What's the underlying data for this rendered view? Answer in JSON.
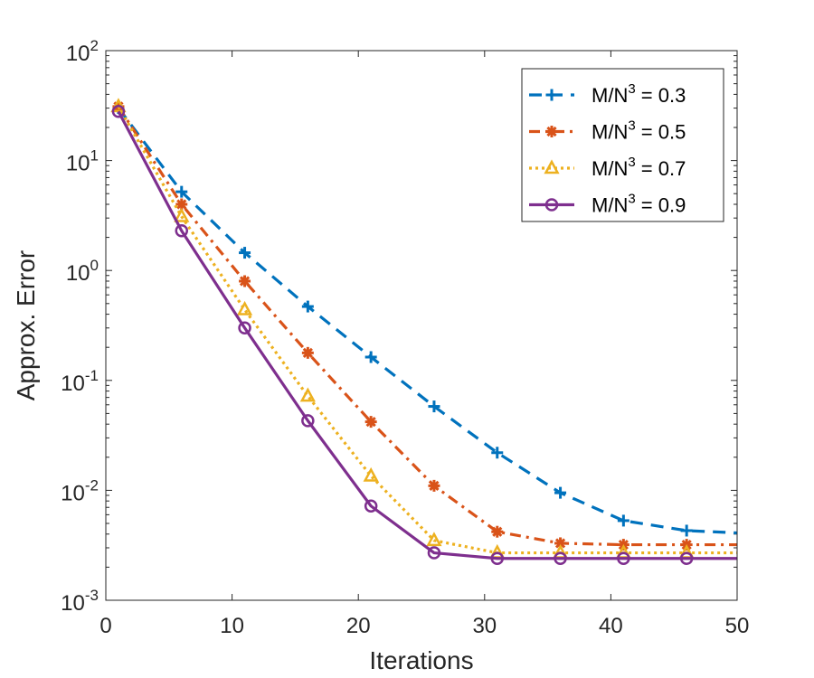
{
  "chart_data": {
    "type": "line",
    "title": "",
    "xlabel": "Iterations",
    "ylabel": "Approx. Error",
    "xlim": [
      0,
      50
    ],
    "ylim": [
      0.001,
      100
    ],
    "yscale": "log",
    "x_ticks": [
      0,
      10,
      20,
      30,
      40,
      50
    ],
    "y_ticks": [
      {
        "value": 0.001,
        "base": "10",
        "exp": "-3"
      },
      {
        "value": 0.01,
        "base": "10",
        "exp": "-2"
      },
      {
        "value": 0.1,
        "base": "10",
        "exp": "-1"
      },
      {
        "value": 1,
        "base": "10",
        "exp": "0"
      },
      {
        "value": 10,
        "base": "10",
        "exp": "1"
      },
      {
        "value": 100,
        "base": "10",
        "exp": "2"
      }
    ],
    "legend_position": "top-right",
    "series": [
      {
        "name": "M/N^3 = 0.3",
        "label_main": "M/N",
        "label_sup": "3",
        "label_tail": " = 0.3",
        "color": "#0072BD",
        "dash": "dashed",
        "marker": "plus",
        "marker_x": [
          1,
          6,
          11,
          16,
          21,
          26,
          31,
          36,
          41,
          46
        ],
        "x": [
          1,
          6,
          11,
          16,
          21,
          26,
          31,
          36,
          41,
          46,
          50
        ],
        "y": [
          30,
          5.2,
          1.45,
          0.47,
          0.163,
          0.058,
          0.022,
          0.0095,
          0.0053,
          0.0043,
          0.0041
        ]
      },
      {
        "name": "M/N^3 = 0.5",
        "label_main": "M/N",
        "label_sup": "3",
        "label_tail": " = 0.5",
        "color": "#D95319",
        "dash": "dashdot",
        "marker": "asterisk",
        "marker_x": [
          1,
          6,
          11,
          16,
          21,
          26,
          31,
          36,
          41,
          46
        ],
        "x": [
          1,
          6,
          11,
          16,
          21,
          26,
          31,
          36,
          41,
          46,
          50
        ],
        "y": [
          31,
          4.0,
          0.8,
          0.178,
          0.042,
          0.011,
          0.0042,
          0.0033,
          0.0032,
          0.0032,
          0.0032
        ]
      },
      {
        "name": "M/N^3 = 0.7",
        "label_main": "M/N",
        "label_sup": "3",
        "label_tail": " = 0.7",
        "color": "#EDB120",
        "dash": "dotted",
        "marker": "triangle",
        "marker_x": [
          1,
          6,
          11,
          16,
          21,
          26,
          31,
          36,
          41,
          46
        ],
        "x": [
          1,
          6,
          11,
          16,
          21,
          26,
          31,
          36,
          41,
          46,
          50
        ],
        "y": [
          31,
          3.1,
          0.44,
          0.072,
          0.0135,
          0.0035,
          0.0027,
          0.0027,
          0.0027,
          0.0027,
          0.0027
        ]
      },
      {
        "name": "M/N^3 = 0.9",
        "label_main": "M/N",
        "label_sup": "3",
        "label_tail": " = 0.9",
        "color": "#7E2F8E",
        "dash": "solid",
        "marker": "circle",
        "marker_x": [
          1,
          6,
          11,
          16,
          21,
          26,
          31,
          36,
          41,
          46
        ],
        "x": [
          1,
          6,
          11,
          16,
          21,
          26,
          31,
          36,
          41,
          46,
          50
        ],
        "y": [
          28,
          2.3,
          0.3,
          0.043,
          0.0072,
          0.0027,
          0.0024,
          0.0024,
          0.0024,
          0.0024,
          0.0024
        ]
      }
    ]
  }
}
